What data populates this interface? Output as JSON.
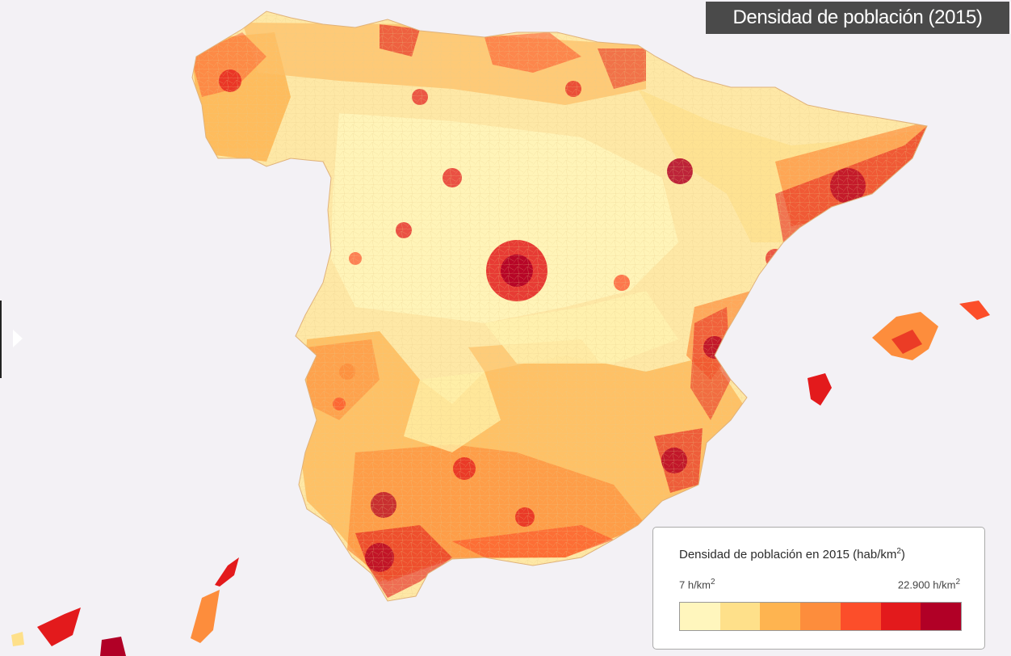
{
  "header": {
    "title": "Densidad de población (2015)"
  },
  "legend": {
    "title": "Densidad de población en 2015 (hab/km",
    "title_sup": "2",
    "title_tail": ")",
    "min_label": "7 h/km",
    "min_sup": "2",
    "max_label": "22.900 h/km",
    "max_sup": "2",
    "colors": [
      "#fff6bd",
      "#fee08a",
      "#feb450",
      "#fd8d3c",
      "#fc4e2a",
      "#e31a1c",
      "#b10026"
    ]
  },
  "map": {
    "land_color": "#fee8a6",
    "background": "#f3f1f5",
    "regions": [
      "Península",
      "Baleares",
      "Canarias"
    ]
  },
  "controls": {
    "side_toggle_icon": "triangle-right-icon"
  }
}
